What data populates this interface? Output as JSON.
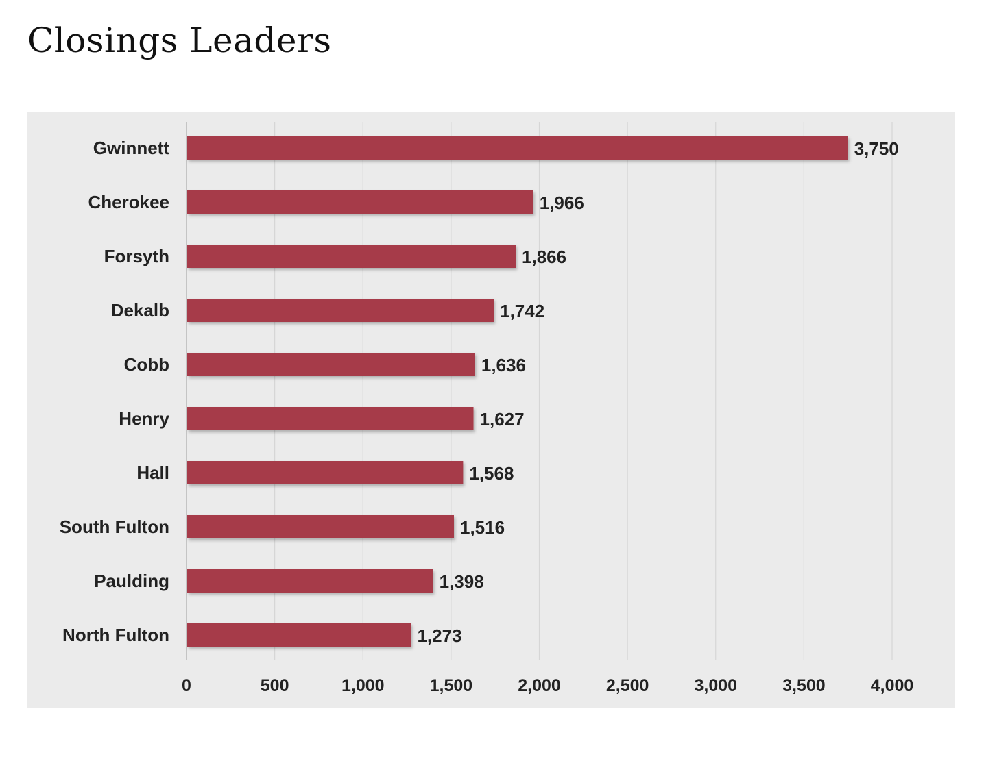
{
  "page": {
    "title": "Closings Leaders"
  },
  "colors": {
    "bar": "#a63a49",
    "panel_background": "#ebebeb",
    "gridline": "#d6d6d6"
  },
  "chart_data": {
    "type": "bar",
    "orientation": "horizontal",
    "title": "",
    "xlabel": "",
    "ylabel": "",
    "categories": [
      "Gwinnett",
      "Cherokee",
      "Forsyth",
      "Dekalb",
      "Cobb",
      "Henry",
      "Hall",
      "South Fulton",
      "Paulding",
      "North Fulton"
    ],
    "values": [
      3750,
      1966,
      1866,
      1742,
      1636,
      1627,
      1568,
      1516,
      1398,
      1273
    ],
    "value_labels": [
      "3,750",
      "1,966",
      "1,866",
      "1,742",
      "1,636",
      "1,627",
      "1,568",
      "1,516",
      "1,398",
      "1,273"
    ],
    "xlim": [
      0,
      4000
    ],
    "x_ticks": [
      0,
      500,
      1000,
      1500,
      2000,
      2500,
      3000,
      3500,
      4000
    ],
    "x_tick_labels": [
      "0",
      "500",
      "1,000",
      "1,500",
      "2,000",
      "2,500",
      "3,000",
      "3,500",
      "4,000"
    ],
    "grid": true,
    "legend": "none"
  }
}
